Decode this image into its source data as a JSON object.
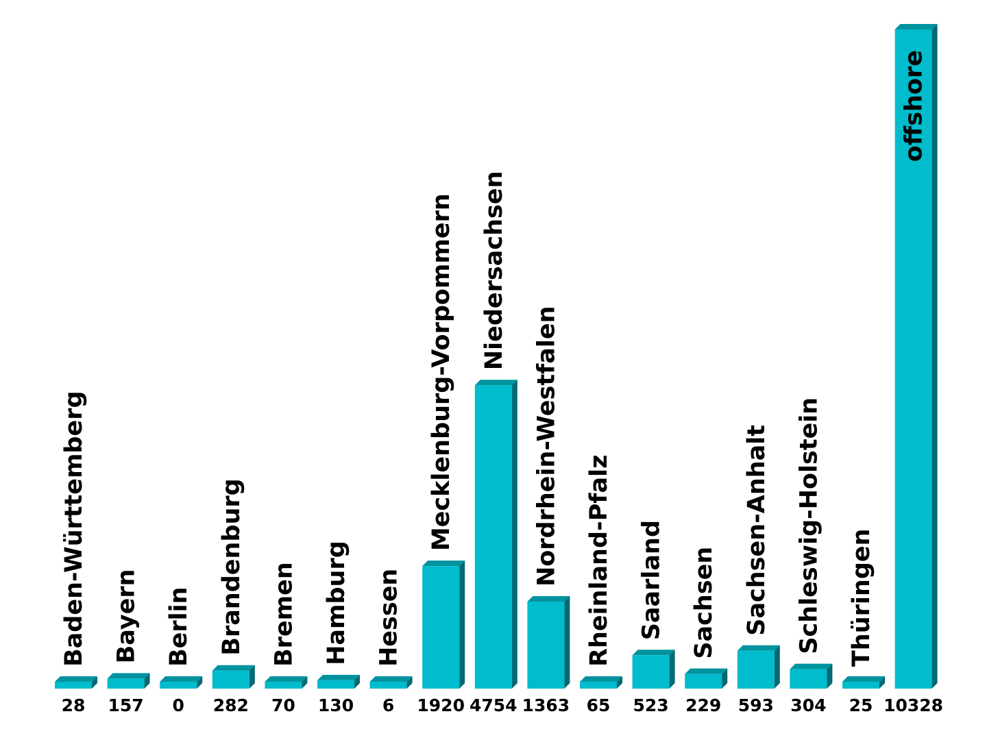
{
  "chart_data": {
    "type": "bar",
    "categories": [
      "Baden-Württemberg",
      "Bayern",
      "Berlin",
      "Brandenburg",
      "Bremen",
      "Hamburg",
      "Hessen",
      "Mecklenburg-Vorpommern",
      "Niedersachsen",
      "Nordrhein-Westfalen",
      "Rheinland-Pfalz",
      "Saarland",
      "Sachsen",
      "Sachsen-Anhalt",
      "Schleswig-Holstein",
      "Thüringen",
      "offshore"
    ],
    "values": [
      28,
      157,
      0,
      282,
      70,
      130,
      6,
      1920,
      4754,
      1363,
      65,
      523,
      229,
      593,
      304,
      25,
      10328
    ],
    "value_labels": [
      "28",
      "157",
      "0",
      "282",
      "70",
      "130",
      "6",
      "1920",
      "4754",
      "1363",
      "65",
      "523",
      "229",
      "593",
      "304",
      "25",
      "10328"
    ],
    "ylim": [
      0,
      10328
    ],
    "grid": false,
    "legend": "none",
    "colors": {
      "bar_front": "#00BCCC",
      "bar_top": "#00939F",
      "bar_side": "#006A73"
    }
  }
}
